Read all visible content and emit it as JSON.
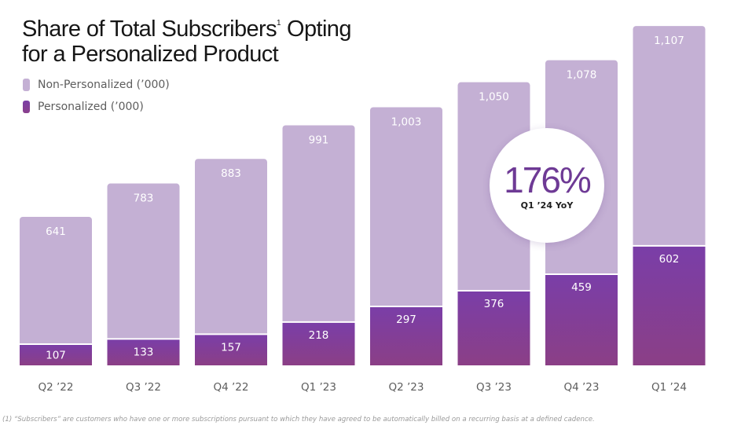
{
  "title": {
    "line1": "Share of Total Subscribers",
    "footnote_marker": "1",
    "line1_suffix": " Opting",
    "line2": "for a Personalized Product"
  },
  "legend": {
    "items": [
      {
        "label": "Non-Personalized (’000)",
        "color": "#c4b0d4"
      },
      {
        "label": "Personalized (’000)",
        "color": "#7b3fa6"
      }
    ]
  },
  "callout": {
    "value": "176%",
    "label": "Q1 ’24 YoY"
  },
  "footnote": "(1) “Subscribers” are customers who have one or more subscriptions pursuant to which they have agreed to be automatically billed on a recurring basis at a defined cadence.",
  "chart_data": {
    "type": "bar",
    "stacked": true,
    "categories": [
      "Q2 ’22",
      "Q3 ’22",
      "Q4 ’22",
      "Q1 ’23",
      "Q2 ’23",
      "Q3 ’23",
      "Q4 ’23",
      "Q1 ’24"
    ],
    "series": [
      {
        "name": "Personalized (’000)",
        "values": [
          107,
          133,
          157,
          218,
          297,
          376,
          459,
          602
        ],
        "color": "#7b3fa6"
      },
      {
        "name": "Non-Personalized (’000)",
        "values": [
          641,
          783,
          883,
          991,
          1003,
          1050,
          1078,
          1107
        ],
        "color": "#c4b0d4"
      }
    ],
    "legend_position": "top-left",
    "grid": false
  }
}
